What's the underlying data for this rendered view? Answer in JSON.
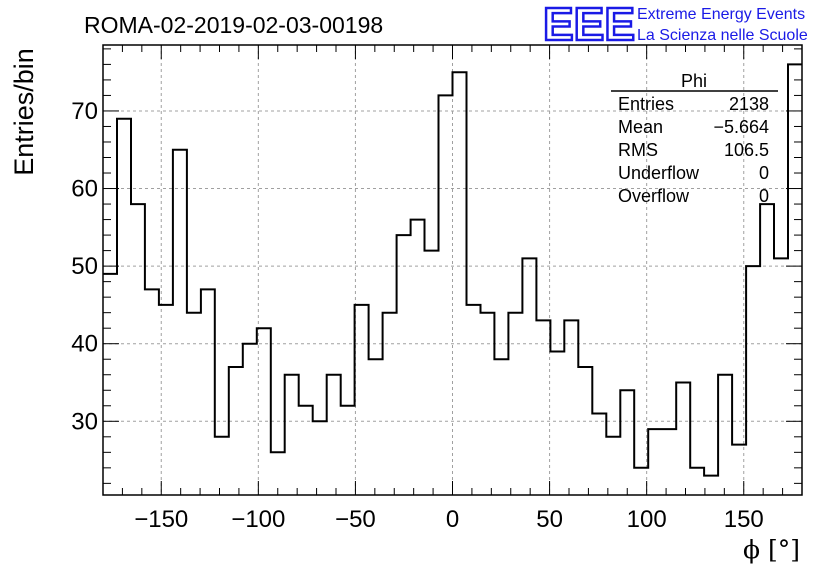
{
  "header": {
    "title": "ROMA-02-2019-02-03-00198",
    "logo_text": "EEE",
    "logo_line1": "Extreme Energy Events",
    "logo_line2": "La Scienza nelle Scuole",
    "brand_color": "#1a1ae6"
  },
  "stats": {
    "title": "Phi",
    "rows": [
      {
        "label": "Entries",
        "value": "2138"
      },
      {
        "label": "Mean",
        "value": "−5.664"
      },
      {
        "label": "RMS",
        "value": "106.5"
      },
      {
        "label": "Underflow",
        "value": "0"
      },
      {
        "label": "Overflow",
        "value": "0"
      }
    ]
  },
  "chart_data": {
    "type": "histogram",
    "xlabel": "ϕ [°]",
    "ylabel": "Entries/bin",
    "xlim": [
      -180,
      180
    ],
    "ylim": [
      20.5,
      78.5
    ],
    "bin_width": 7.2,
    "x_ticks": [
      -150,
      -100,
      -50,
      0,
      50,
      100,
      150
    ],
    "x_tick_labels": [
      "−150",
      "−100",
      "−50",
      "0",
      "50",
      "100",
      "150"
    ],
    "y_ticks": [
      30,
      40,
      50,
      60,
      70
    ],
    "grid": true,
    "values": [
      49,
      69,
      58,
      47,
      45,
      65,
      44,
      47,
      28,
      37,
      40,
      42,
      26,
      36,
      32,
      30,
      36,
      32,
      45,
      38,
      44,
      54,
      56,
      52,
      72,
      75,
      45,
      44,
      38,
      44,
      51,
      43,
      39,
      43,
      37,
      31,
      28,
      34,
      24,
      29,
      29,
      35,
      24,
      23,
      36,
      27,
      50,
      58,
      51,
      76
    ]
  }
}
